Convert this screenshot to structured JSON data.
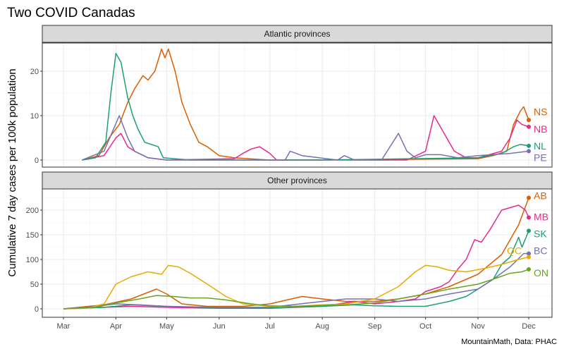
{
  "chart_data": [
    {
      "type": "line",
      "title": "Two COVID Canadas",
      "panel": "Atlantic provinces",
      "ylabel": "Cumulative 7 day cases per 100k population",
      "caption": "MountainMath, Data: PHAC",
      "x_ticks": [
        "Mar",
        "Apr",
        "May",
        "Jun",
        "Jul",
        "Aug",
        "Sep",
        "Oct",
        "Nov",
        "Dec"
      ],
      "y_ticks": [
        0,
        10,
        20
      ],
      "ylim": [
        -1,
        27
      ],
      "xlim": [
        "2020-02-23",
        "2020-12-14"
      ],
      "grid": true,
      "legend": "direct labels at line ends",
      "series": [
        {
          "name": "NS",
          "color": "#d95f02",
          "points": [
            [
              "2020-03-12",
              0
            ],
            [
              "2020-03-22",
              1
            ],
            [
              "2020-03-28",
              5
            ],
            [
              "2020-04-03",
              8
            ],
            [
              "2020-04-08",
              13
            ],
            [
              "2020-04-12",
              16
            ],
            [
              "2020-04-17",
              19
            ],
            [
              "2020-04-20",
              18
            ],
            [
              "2020-04-24",
              20
            ],
            [
              "2020-04-28",
              25
            ],
            [
              "2020-04-30",
              23
            ],
            [
              "2020-05-02",
              25
            ],
            [
              "2020-05-06",
              20
            ],
            [
              "2020-05-10",
              13
            ],
            [
              "2020-05-15",
              8
            ],
            [
              "2020-05-20",
              4
            ],
            [
              "2020-05-25",
              3
            ],
            [
              "2020-06-01",
              1
            ],
            [
              "2020-06-10",
              0.5
            ],
            [
              "2020-07-01",
              0
            ],
            [
              "2020-09-01",
              0.1
            ],
            [
              "2020-10-01",
              0.2
            ],
            [
              "2020-11-01",
              0.3
            ],
            [
              "2020-11-10",
              1
            ],
            [
              "2020-11-18",
              2
            ],
            [
              "2020-11-22",
              8
            ],
            [
              "2020-11-26",
              11
            ],
            [
              "2020-11-28",
              12
            ],
            [
              "2020-12-01",
              9
            ]
          ]
        },
        {
          "name": "NB",
          "color": "#e7298a",
          "points": [
            [
              "2020-03-12",
              0
            ],
            [
              "2020-03-25",
              1
            ],
            [
              "2020-04-01",
              5
            ],
            [
              "2020-04-04",
              6
            ],
            [
              "2020-04-08",
              3
            ],
            [
              "2020-04-12",
              2
            ],
            [
              "2020-04-20",
              0.5
            ],
            [
              "2020-05-01",
              0
            ],
            [
              "2020-06-10",
              0.3
            ],
            [
              "2020-06-15",
              1.5
            ],
            [
              "2020-06-20",
              2.5
            ],
            [
              "2020-06-25",
              3
            ],
            [
              "2020-07-01",
              1.5
            ],
            [
              "2020-07-05",
              0
            ],
            [
              "2020-09-20",
              0
            ],
            [
              "2020-10-01",
              2
            ],
            [
              "2020-10-06",
              10
            ],
            [
              "2020-10-12",
              6
            ],
            [
              "2020-10-18",
              2
            ],
            [
              "2020-10-25",
              0.5
            ],
            [
              "2020-11-01",
              0.5
            ],
            [
              "2020-11-15",
              2
            ],
            [
              "2020-11-20",
              5
            ],
            [
              "2020-11-24",
              9
            ],
            [
              "2020-11-27",
              8
            ],
            [
              "2020-12-01",
              7.5
            ]
          ]
        },
        {
          "name": "NL",
          "color": "#1b9e77",
          "points": [
            [
              "2020-03-12",
              0
            ],
            [
              "2020-03-20",
              0.5
            ],
            [
              "2020-03-26",
              4
            ],
            [
              "2020-03-29",
              15
            ],
            [
              "2020-04-01",
              24
            ],
            [
              "2020-04-04",
              22
            ],
            [
              "2020-04-08",
              14
            ],
            [
              "2020-04-11",
              10
            ],
            [
              "2020-04-14",
              7
            ],
            [
              "2020-04-18",
              4
            ],
            [
              "2020-04-22",
              3.5
            ],
            [
              "2020-04-26",
              3
            ],
            [
              "2020-04-29",
              0.5
            ],
            [
              "2020-05-15",
              0
            ],
            [
              "2020-08-01",
              0
            ],
            [
              "2020-11-01",
              0.5
            ],
            [
              "2020-11-15",
              1.5
            ],
            [
              "2020-11-22",
              3
            ],
            [
              "2020-11-26",
              3.5
            ],
            [
              "2020-12-01",
              3.2
            ]
          ]
        },
        {
          "name": "PE",
          "color": "#7570b3",
          "points": [
            [
              "2020-03-12",
              0
            ],
            [
              "2020-03-25",
              2
            ],
            [
              "2020-04-03",
              10
            ],
            [
              "2020-04-08",
              5
            ],
            [
              "2020-04-12",
              2
            ],
            [
              "2020-04-20",
              0.5
            ],
            [
              "2020-05-01",
              0
            ],
            [
              "2020-07-10",
              0
            ],
            [
              "2020-07-13",
              2
            ],
            [
              "2020-07-20",
              1
            ],
            [
              "2020-08-10",
              0
            ],
            [
              "2020-08-14",
              1
            ],
            [
              "2020-08-20",
              0
            ],
            [
              "2020-09-05",
              0
            ],
            [
              "2020-09-10",
              3
            ],
            [
              "2020-09-15",
              6
            ],
            [
              "2020-09-20",
              2
            ],
            [
              "2020-09-25",
              0.5
            ],
            [
              "2020-10-01",
              1.2
            ],
            [
              "2020-10-10",
              1.2
            ],
            [
              "2020-10-20",
              0.5
            ],
            [
              "2020-11-01",
              1
            ],
            [
              "2020-11-20",
              1.5
            ],
            [
              "2020-12-01",
              2
            ]
          ]
        }
      ]
    },
    {
      "type": "line",
      "panel": "Other provinces",
      "x_ticks": [
        "Mar",
        "Apr",
        "May",
        "Jun",
        "Jul",
        "Aug",
        "Sep",
        "Oct",
        "Nov",
        "Dec"
      ],
      "y_ticks": [
        0,
        50,
        100,
        150,
        200
      ],
      "ylim": [
        -10,
        235
      ],
      "grid": true,
      "series": [
        {
          "name": "AB",
          "color": "#d95f02",
          "points": [
            [
              "2020-03-01",
              0
            ],
            [
              "2020-03-25",
              8
            ],
            [
              "2020-04-10",
              20
            ],
            [
              "2020-04-25",
              40
            ],
            [
              "2020-05-01",
              30
            ],
            [
              "2020-05-10",
              10
            ],
            [
              "2020-05-25",
              5
            ],
            [
              "2020-06-15",
              5
            ],
            [
              "2020-07-01",
              10
            ],
            [
              "2020-07-20",
              25
            ],
            [
              "2020-08-01",
              20
            ],
            [
              "2020-08-15",
              15
            ],
            [
              "2020-09-01",
              15
            ],
            [
              "2020-09-15",
              20
            ],
            [
              "2020-10-01",
              30
            ],
            [
              "2020-10-15",
              45
            ],
            [
              "2020-11-01",
              70
            ],
            [
              "2020-11-15",
              110
            ],
            [
              "2020-11-25",
              170
            ],
            [
              "2020-12-01",
              225
            ]
          ]
        },
        {
          "name": "MB",
          "color": "#e7298a",
          "points": [
            [
              "2020-03-01",
              0
            ],
            [
              "2020-03-25",
              3
            ],
            [
              "2020-04-10",
              5
            ],
            [
              "2020-05-01",
              3
            ],
            [
              "2020-06-01",
              1
            ],
            [
              "2020-07-01",
              1
            ],
            [
              "2020-08-01",
              5
            ],
            [
              "2020-08-20",
              15
            ],
            [
              "2020-09-01",
              10
            ],
            [
              "2020-09-15",
              15
            ],
            [
              "2020-09-25",
              20
            ],
            [
              "2020-10-01",
              35
            ],
            [
              "2020-10-10",
              45
            ],
            [
              "2020-10-15",
              55
            ],
            [
              "2020-10-20",
              80
            ],
            [
              "2020-10-25",
              100
            ],
            [
              "2020-10-30",
              140
            ],
            [
              "2020-11-03",
              135
            ],
            [
              "2020-11-08",
              160
            ],
            [
              "2020-11-15",
              200
            ],
            [
              "2020-11-20",
              205
            ],
            [
              "2020-11-25",
              210
            ],
            [
              "2020-11-29",
              200
            ],
            [
              "2020-12-01",
              185
            ]
          ]
        },
        {
          "name": "SK",
          "color": "#1b9e77",
          "points": [
            [
              "2020-03-01",
              0
            ],
            [
              "2020-03-25",
              3
            ],
            [
              "2020-04-10",
              8
            ],
            [
              "2020-05-01",
              5
            ],
            [
              "2020-06-01",
              2
            ],
            [
              "2020-07-01",
              2
            ],
            [
              "2020-08-01",
              5
            ],
            [
              "2020-08-20",
              8
            ],
            [
              "2020-09-01",
              6
            ],
            [
              "2020-09-15",
              5
            ],
            [
              "2020-10-01",
              5
            ],
            [
              "2020-10-15",
              15
            ],
            [
              "2020-10-25",
              25
            ],
            [
              "2020-11-01",
              40
            ],
            [
              "2020-11-10",
              60
            ],
            [
              "2020-11-15",
              90
            ],
            [
              "2020-11-20",
              105
            ],
            [
              "2020-11-25",
              145
            ],
            [
              "2020-11-27",
              125
            ],
            [
              "2020-12-01",
              158
            ]
          ]
        },
        {
          "name": "BC",
          "color": "#7570b3",
          "points": [
            [
              "2020-03-01",
              0
            ],
            [
              "2020-03-20",
              5
            ],
            [
              "2020-04-01",
              10
            ],
            [
              "2020-04-15",
              8
            ],
            [
              "2020-05-01",
              5
            ],
            [
              "2020-06-01",
              3
            ],
            [
              "2020-07-01",
              3
            ],
            [
              "2020-08-01",
              15
            ],
            [
              "2020-08-15",
              20
            ],
            [
              "2020-09-01",
              20
            ],
            [
              "2020-09-15",
              15
            ],
            [
              "2020-10-01",
              20
            ],
            [
              "2020-10-15",
              30
            ],
            [
              "2020-11-01",
              40
            ],
            [
              "2020-11-10",
              60
            ],
            [
              "2020-11-20",
              85
            ],
            [
              "2020-11-28",
              112
            ],
            [
              "2020-12-01",
              112
            ]
          ]
        },
        {
          "name": "QC",
          "color": "#e6ab02",
          "points": [
            [
              "2020-03-01",
              0
            ],
            [
              "2020-03-15",
              1
            ],
            [
              "2020-03-25",
              10
            ],
            [
              "2020-04-01",
              50
            ],
            [
              "2020-04-10",
              65
            ],
            [
              "2020-04-20",
              75
            ],
            [
              "2020-04-28",
              70
            ],
            [
              "2020-05-02",
              88
            ],
            [
              "2020-05-08",
              85
            ],
            [
              "2020-05-15",
              72
            ],
            [
              "2020-05-25",
              50
            ],
            [
              "2020-06-05",
              25
            ],
            [
              "2020-06-15",
              10
            ],
            [
              "2020-07-01",
              5
            ],
            [
              "2020-07-15",
              5
            ],
            [
              "2020-08-01",
              8
            ],
            [
              "2020-08-15",
              10
            ],
            [
              "2020-09-01",
              20
            ],
            [
              "2020-09-15",
              45
            ],
            [
              "2020-09-25",
              75
            ],
            [
              "2020-10-01",
              88
            ],
            [
              "2020-10-08",
              85
            ],
            [
              "2020-10-15",
              78
            ],
            [
              "2020-10-25",
              75
            ],
            [
              "2020-11-05",
              82
            ],
            [
              "2020-11-15",
              90
            ],
            [
              "2020-11-25",
              100
            ],
            [
              "2020-12-01",
              105
            ]
          ]
        },
        {
          "name": "ON",
          "color": "#66a61e",
          "points": [
            [
              "2020-03-01",
              0
            ],
            [
              "2020-03-20",
              3
            ],
            [
              "2020-04-01",
              12
            ],
            [
              "2020-04-15",
              20
            ],
            [
              "2020-04-25",
              27
            ],
            [
              "2020-05-05",
              25
            ],
            [
              "2020-05-15",
              22
            ],
            [
              "2020-05-25",
              22
            ],
            [
              "2020-06-05",
              18
            ],
            [
              "2020-06-20",
              10
            ],
            [
              "2020-07-01",
              6
            ],
            [
              "2020-07-15",
              5
            ],
            [
              "2020-08-01",
              7
            ],
            [
              "2020-08-15",
              8
            ],
            [
              "2020-09-01",
              12
            ],
            [
              "2020-09-15",
              20
            ],
            [
              "2020-10-01",
              30
            ],
            [
              "2020-10-15",
              40
            ],
            [
              "2020-11-01",
              50
            ],
            [
              "2020-11-10",
              60
            ],
            [
              "2020-11-20",
              72
            ],
            [
              "2020-11-27",
              75
            ],
            [
              "2020-12-01",
              80
            ]
          ]
        }
      ]
    }
  ]
}
